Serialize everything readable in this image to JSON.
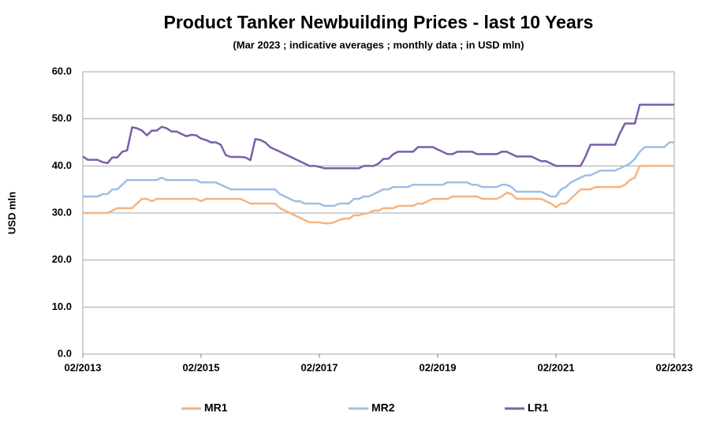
{
  "chart_data": {
    "type": "line",
    "title": "Product Tanker Newbuilding Prices - last 10 Years",
    "subtitle": "(Mar 2023 ; indicative averages ; monthly data ; in USD mln)",
    "y_label": "USD mln",
    "x": [
      "02/2013",
      "03/2013",
      "04/2013",
      "05/2013",
      "06/2013",
      "07/2013",
      "08/2013",
      "09/2013",
      "10/2013",
      "11/2013",
      "12/2013",
      "01/2014",
      "02/2014",
      "03/2014",
      "04/2014",
      "05/2014",
      "06/2014",
      "07/2014",
      "08/2014",
      "09/2014",
      "10/2014",
      "11/2014",
      "12/2014",
      "01/2015",
      "02/2015",
      "03/2015",
      "04/2015",
      "05/2015",
      "06/2015",
      "07/2015",
      "08/2015",
      "09/2015",
      "10/2015",
      "11/2015",
      "12/2015",
      "01/2016",
      "02/2016",
      "03/2016",
      "04/2016",
      "05/2016",
      "06/2016",
      "07/2016",
      "08/2016",
      "09/2016",
      "10/2016",
      "11/2016",
      "12/2016",
      "01/2017",
      "02/2017",
      "03/2017",
      "04/2017",
      "05/2017",
      "06/2017",
      "07/2017",
      "08/2017",
      "09/2017",
      "10/2017",
      "11/2017",
      "12/2017",
      "01/2018",
      "02/2018",
      "03/2018",
      "04/2018",
      "05/2018",
      "06/2018",
      "07/2018",
      "08/2018",
      "09/2018",
      "10/2018",
      "11/2018",
      "12/2018",
      "01/2019",
      "02/2019",
      "03/2019",
      "04/2019",
      "05/2019",
      "06/2019",
      "07/2019",
      "08/2019",
      "09/2019",
      "10/2019",
      "11/2019",
      "12/2019",
      "01/2020",
      "02/2020",
      "03/2020",
      "04/2020",
      "05/2020",
      "06/2020",
      "07/2020",
      "08/2020",
      "09/2020",
      "10/2020",
      "11/2020",
      "12/2020",
      "01/2021",
      "02/2021",
      "03/2021",
      "04/2021",
      "05/2021",
      "06/2021",
      "07/2021",
      "08/2021",
      "09/2021",
      "10/2021",
      "11/2021",
      "12/2021",
      "01/2022",
      "02/2022",
      "03/2022",
      "04/2022",
      "05/2022",
      "06/2022",
      "07/2022",
      "08/2022",
      "09/2022",
      "10/2022",
      "11/2022",
      "12/2022",
      "01/2023",
      "02/2023"
    ],
    "series": [
      {
        "name": "MR1",
        "color": "#f2b482",
        "values": [
          30,
          30,
          30,
          30,
          30,
          30,
          30.5,
          31,
          31,
          31,
          31,
          32,
          33,
          33,
          32.5,
          33,
          33,
          33,
          33,
          33,
          33,
          33,
          33,
          33,
          32.5,
          33,
          33,
          33,
          33,
          33,
          33,
          33,
          33,
          32.5,
          32,
          32,
          32,
          32,
          32,
          32,
          31,
          30.5,
          30,
          29.5,
          29,
          28.5,
          28,
          28,
          28,
          27.8,
          27.8,
          28,
          28.5,
          28.8,
          28.8,
          29.5,
          29.5,
          29.8,
          30,
          30.5,
          30.5,
          31,
          31,
          31,
          31.5,
          31.5,
          31.5,
          31.5,
          32,
          32,
          32.5,
          33,
          33,
          33,
          33,
          33.5,
          33.5,
          33.5,
          33.5,
          33.5,
          33.5,
          33,
          33,
          33,
          33,
          33.5,
          34.3,
          34,
          33,
          33,
          33,
          33,
          33,
          33,
          32.5,
          32,
          31.2,
          32,
          32,
          33,
          34,
          35,
          35,
          35,
          35.5,
          35.5,
          35.5,
          35.5,
          35.5,
          35.5,
          36,
          37,
          37.5,
          40,
          40,
          40,
          40,
          40,
          40,
          40,
          40
        ]
      },
      {
        "name": "MR2",
        "color": "#9dbfe6",
        "values": [
          33.5,
          33.5,
          33.5,
          33.5,
          34,
          34,
          35,
          35,
          36,
          37,
          37,
          37,
          37,
          37,
          37,
          37,
          37.5,
          37,
          37,
          37,
          37,
          37,
          37,
          37,
          36.5,
          36.5,
          36.5,
          36.5,
          36,
          35.5,
          35,
          35,
          35,
          35,
          35,
          35,
          35,
          35,
          35,
          35,
          34,
          33.5,
          33,
          32.5,
          32.5,
          32,
          32,
          32,
          32,
          31.5,
          31.5,
          31.5,
          32,
          32,
          32,
          33,
          33,
          33.5,
          33.5,
          34,
          34.5,
          35,
          35,
          35.5,
          35.5,
          35.5,
          35.5,
          36,
          36,
          36,
          36,
          36,
          36,
          36,
          36.5,
          36.5,
          36.5,
          36.5,
          36.5,
          36,
          36,
          35.5,
          35.5,
          35.5,
          35.5,
          36,
          36,
          35.5,
          34.5,
          34.5,
          34.5,
          34.5,
          34.5,
          34.5,
          34,
          33.5,
          33.5,
          35,
          35.5,
          36.5,
          37,
          37.5,
          38,
          38,
          38.5,
          39,
          39,
          39,
          39,
          39.5,
          40,
          40.5,
          41.5,
          43,
          44,
          44,
          44,
          44,
          44,
          45,
          45
        ]
      },
      {
        "name": "LR1",
        "color": "#7b5ea7",
        "values": [
          42,
          41.3,
          41.3,
          41.3,
          40.8,
          40.6,
          41.8,
          41.8,
          43,
          43.3,
          48.2,
          48,
          47.5,
          46.5,
          47.5,
          47.5,
          48.3,
          48,
          47.3,
          47.3,
          46.8,
          46.3,
          46.6,
          46.5,
          45.8,
          45.5,
          45,
          45,
          44.5,
          42.3,
          41.9,
          41.9,
          41.9,
          41.8,
          41.2,
          45.7,
          45.5,
          45,
          44,
          43.5,
          43,
          42.5,
          42,
          41.5,
          41,
          40.5,
          40,
          40,
          39.8,
          39.5,
          39.5,
          39.5,
          39.5,
          39.5,
          39.5,
          39.5,
          39.5,
          40,
          40,
          40,
          40.5,
          41.5,
          41.5,
          42.5,
          43,
          43,
          43,
          43,
          44,
          44,
          44,
          44,
          43.5,
          43,
          42.5,
          42.5,
          43,
          43,
          43,
          43,
          42.5,
          42.5,
          42.5,
          42.5,
          42.5,
          43,
          43,
          42.5,
          42,
          42,
          42,
          42,
          41.5,
          41,
          41,
          40.5,
          40,
          40,
          40,
          40,
          40,
          40,
          42,
          44.5,
          44.5,
          44.5,
          44.5,
          44.5,
          44.5,
          47,
          49,
          49,
          49,
          53,
          53,
          53,
          53,
          53,
          53,
          53,
          53
        ]
      }
    ],
    "ylim": [
      0,
      60
    ],
    "yticks": [
      {
        "value": 0,
        "label": "0.0"
      },
      {
        "value": 10,
        "label": "10.0"
      },
      {
        "value": 20,
        "label": "20.0"
      },
      {
        "value": 30,
        "label": "30.0"
      },
      {
        "value": 40,
        "label": "40.0"
      },
      {
        "value": 50,
        "label": "50.0"
      },
      {
        "value": 60,
        "label": "60.0"
      }
    ],
    "xticks": [
      "02/2013",
      "02/2015",
      "02/2017",
      "02/2019",
      "02/2021",
      "02/2023"
    ],
    "grid": true,
    "legend": "bottom"
  }
}
